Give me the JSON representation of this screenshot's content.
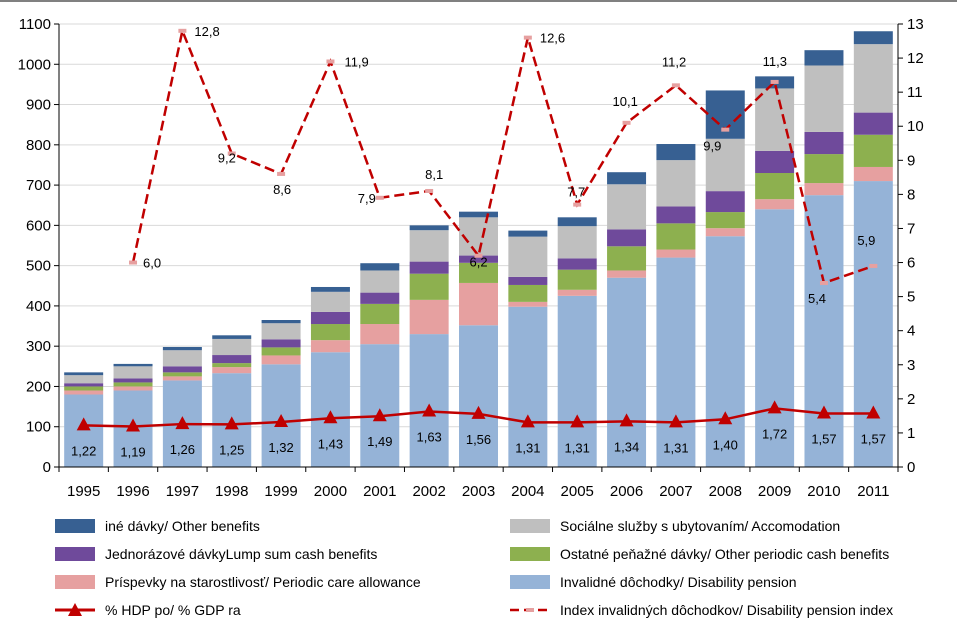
{
  "chart_data": {
    "type": "bar",
    "stacked": true,
    "categories": [
      "1995",
      "1996",
      "1997",
      "1998",
      "1999",
      "2000",
      "2001",
      "2002",
      "2003",
      "2004",
      "2005",
      "2006",
      "2007",
      "2008",
      "2009",
      "2010",
      "2011"
    ],
    "y_left": {
      "ylim": [
        0,
        1100
      ],
      "ticks": [
        "0",
        "100",
        "200",
        "300",
        "400",
        "500",
        "600",
        "700",
        "800",
        "900",
        "1000",
        "1100"
      ]
    },
    "y_right": {
      "ylim": [
        0,
        13
      ],
      "ticks": [
        "0",
        "1",
        "2",
        "3",
        "4",
        "5",
        "6",
        "7",
        "8",
        "9",
        "10",
        "11",
        "12",
        "13"
      ]
    },
    "series": [
      {
        "name": "Invalidné dôchodky/ Disability pension",
        "color": "#95B3D7",
        "values": [
          180,
          190,
          215,
          233,
          255,
          285,
          305,
          330,
          352,
          398,
          425,
          470,
          520,
          573,
          640,
          675,
          710
        ]
      },
      {
        "name": "Príspevky na starostlivosť/ Periodic care allowance",
        "color": "#E6A0A0",
        "values": [
          10,
          10,
          10,
          15,
          22,
          30,
          50,
          85,
          105,
          12,
          15,
          18,
          20,
          20,
          25,
          30,
          35
        ]
      },
      {
        "name": "Ostatné peňažné dávky/ Other periodic cash benefits",
        "color": "#8DB04F",
        "values": [
          10,
          10,
          10,
          10,
          20,
          40,
          50,
          65,
          50,
          42,
          50,
          60,
          65,
          40,
          65,
          72,
          80
        ]
      },
      {
        "name": "Jednorázové dávkyLump sum cash benefits",
        "color": "#6F4A9B",
        "values": [
          8,
          10,
          15,
          20,
          20,
          30,
          28,
          30,
          18,
          20,
          28,
          42,
          42,
          52,
          55,
          55,
          55
        ]
      },
      {
        "name": "Sociálne služby s ubytovaním/ Accomodation",
        "color": "#BFBFBF",
        "values": [
          20,
          30,
          40,
          40,
          40,
          50,
          55,
          78,
          95,
          100,
          80,
          112,
          115,
          130,
          155,
          165,
          170
        ]
      },
      {
        "name": "iné dávky/ Other benefits",
        "color": "#376092",
        "values": [
          7,
          6,
          8,
          9,
          8,
          12,
          18,
          12,
          14,
          15,
          22,
          30,
          40,
          120,
          30,
          38,
          32
        ]
      }
    ],
    "line_gdp": {
      "name": "% HDP po/ % GDP ra",
      "color": "#C00000",
      "axis": "right",
      "values": [
        1.22,
        1.19,
        1.26,
        1.25,
        1.32,
        1.43,
        1.49,
        1.63,
        1.56,
        1.31,
        1.31,
        1.34,
        1.31,
        1.4,
        1.72,
        1.57,
        1.57
      ],
      "labels": [
        "1,22",
        "1,19",
        "1,26",
        "1,25",
        "1,32",
        "1,43",
        "1,49",
        "1,63",
        "1,56",
        "1,31",
        "1,31",
        "1,34",
        "1,31",
        "1,40",
        "1,72",
        "1,57",
        "1,57"
      ]
    },
    "line_index": {
      "name": "Index invalidných dôchodkov/ Disability pension index",
      "color": "#C00000",
      "axis": "right",
      "values": [
        null,
        6.0,
        12.8,
        9.2,
        8.6,
        11.9,
        7.9,
        8.1,
        6.2,
        12.6,
        7.7,
        10.1,
        11.2,
        9.9,
        11.3,
        5.4,
        5.9
      ],
      "labels": [
        null,
        "6,0",
        "12,8",
        "9,2",
        "8,6",
        "11,9",
        "7,9",
        "8,1",
        "6,2",
        "12,6",
        "7,7",
        "10,1",
        "11,2",
        "9,9",
        "11,3",
        "5,4",
        "5,9"
      ]
    }
  },
  "legend": {
    "other_benefits": "iné dávky/ Other benefits",
    "accommodation": "Sociálne služby s ubytovaním/ Accomodation",
    "lump_sum": "Jednorázové dávkyLump sum cash benefits",
    "other_periodic": "Ostatné peňažné dávky/ Other periodic cash benefits",
    "care_allowance": "Príspevky na starostlivosť/ Periodic care allowance",
    "disability_pension": "Invalidné dôchodky/ Disability pension",
    "gdp_share": "% HDP po/ % GDP ra",
    "pension_index": "Index invalidných dôchodkov/ Disability pension index"
  },
  "colors": {
    "other_benefits": "#376092",
    "accommodation": "#BFBFBF",
    "lump_sum": "#6F4A9B",
    "other_periodic": "#8DB04F",
    "care_allowance": "#E6A0A0",
    "disability_pension": "#95B3D7",
    "line": "#C00000",
    "index_marker": "#E6A0A0"
  }
}
